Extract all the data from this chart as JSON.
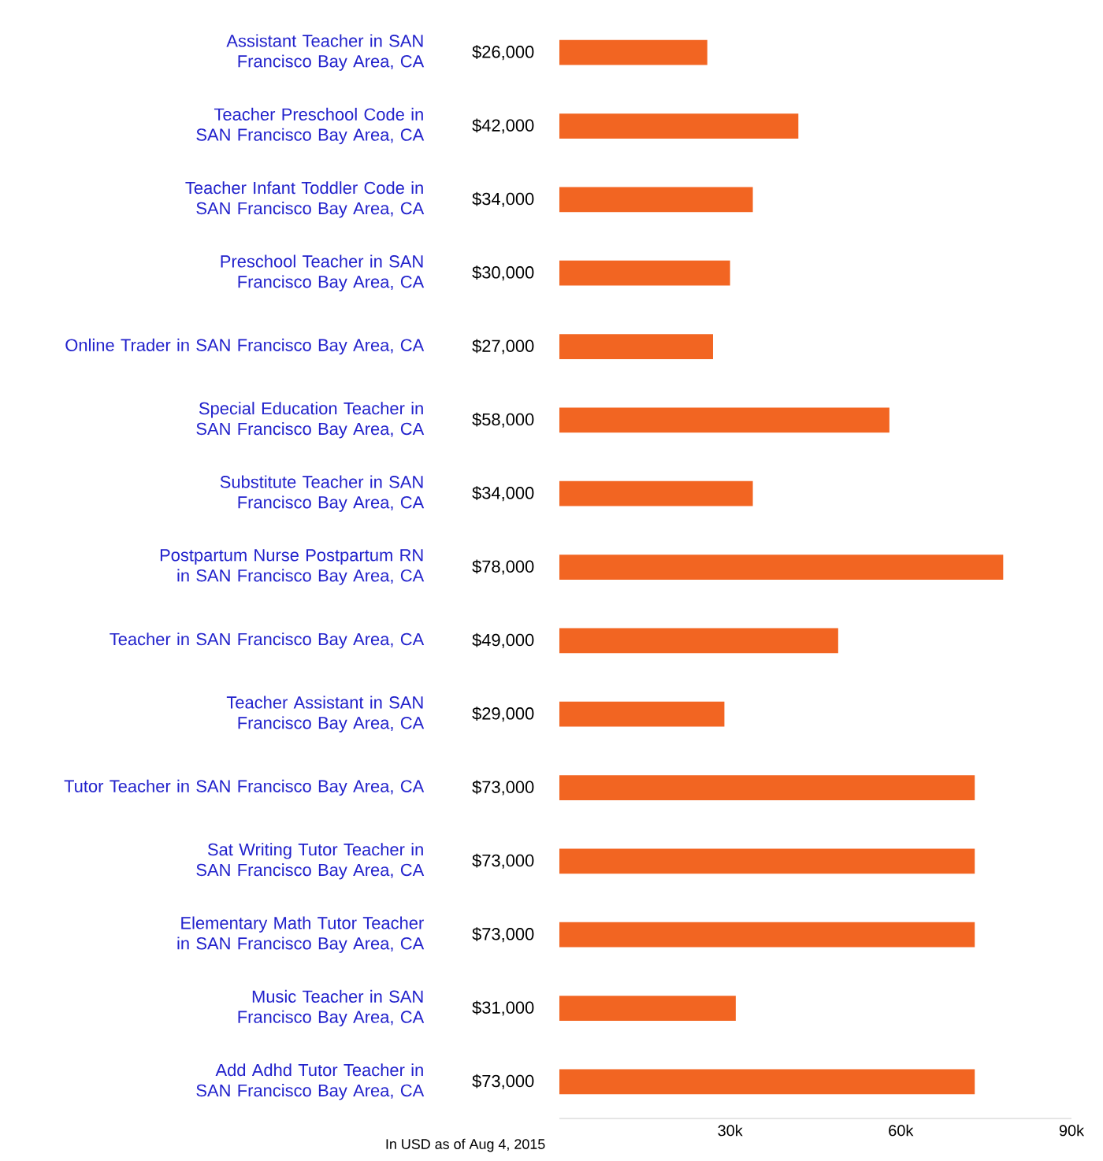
{
  "chart_data": {
    "type": "bar",
    "orientation": "horizontal",
    "color": "#f26522",
    "categories": [
      "Assistant Teacher in SAN Francisco Bay Area, CA",
      "Teacher Preschool Code in SAN Francisco Bay Area, CA",
      "Teacher Infant Toddler Code in SAN Francisco Bay Area, CA",
      "Preschool Teacher in SAN Francisco Bay Area, CA",
      "Online Trader in SAN Francisco Bay Area, CA",
      "Special Education Teacher in SAN Francisco Bay Area, CA",
      "Substitute Teacher in SAN Francisco Bay Area, CA",
      "Postpartum Nurse Postpartum RN in SAN Francisco Bay Area, CA",
      "Teacher in SAN Francisco Bay Area, CA",
      "Teacher Assistant in SAN Francisco Bay Area, CA",
      "Tutor Teacher in SAN Francisco Bay Area, CA",
      "Sat Writing Tutor Teacher in SAN Francisco Bay Area, CA",
      "Elementary Math Tutor Teacher in SAN Francisco Bay Area, CA",
      "Music Teacher in SAN Francisco Bay Area, CA",
      "Add Adhd Tutor Teacher in SAN Francisco Bay Area, CA"
    ],
    "values": [
      26000,
      42000,
      34000,
      30000,
      27000,
      58000,
      34000,
      78000,
      49000,
      29000,
      73000,
      73000,
      73000,
      31000,
      73000
    ],
    "value_labels": [
      "$26,000",
      "$42,000",
      "$34,000",
      "$30,000",
      "$27,000",
      "$58,000",
      "$34,000",
      "$78,000",
      "$49,000",
      "$29,000",
      "$73,000",
      "$73,000",
      "$73,000",
      "$31,000",
      "$73,000"
    ],
    "xlim": [
      0,
      90000
    ],
    "xticks": [
      {
        "value": 30000,
        "label": "30k"
      },
      {
        "value": 60000,
        "label": "60k"
      },
      {
        "value": 90000,
        "label": "90k"
      }
    ],
    "annotations": [
      "In USD as of Aug 4, 2015"
    ]
  }
}
